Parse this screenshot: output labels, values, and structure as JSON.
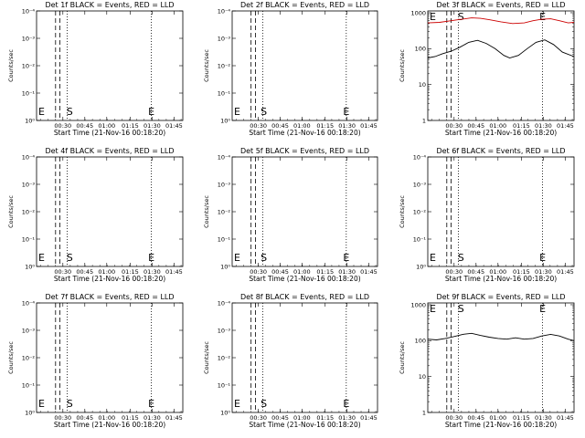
{
  "chart_data": [
    {
      "id": "det1f",
      "type": "line",
      "title": "Det 1f BLACK = Events, RED = LLD",
      "ylabel": "Counts/sec",
      "xlabel": "Start Time (21-Nov-16 00:18:20)",
      "ylim_labels": [
        "10⁰",
        "10⁻¹",
        "10⁻²",
        "10⁻³",
        "10⁻⁴"
      ],
      "xticks": [
        "00:30",
        "00:45",
        "01:00",
        "01:15",
        "01:30",
        "01:45"
      ],
      "markers": [
        {
          "label": "E",
          "x": 0.0
        },
        {
          "label": "S",
          "x": 0.2
        },
        {
          "label": "E",
          "x": 0.78
        }
      ],
      "series": []
    },
    {
      "id": "det2f",
      "type": "line",
      "title": "Det 2f BLACK = Events, RED = LLD",
      "ylabel": "Counts/sec",
      "xlabel": "Start Time (21-Nov-16 00:18:20)",
      "ylim_labels": [
        "10⁰",
        "10⁻¹",
        "10⁻²",
        "10⁻³",
        "10⁻⁴"
      ],
      "xticks": [
        "00:30",
        "00:45",
        "01:00",
        "01:15",
        "01:30",
        "01:45"
      ],
      "markers": [
        {
          "label": "E",
          "x": 0.0
        },
        {
          "label": "S",
          "x": 0.19
        },
        {
          "label": "E",
          "x": 0.78
        }
      ],
      "series": []
    },
    {
      "id": "det3f",
      "type": "line",
      "title": "Det 3f BLACK = Events, RED = LLD",
      "ylabel": "Counts/sec",
      "xlabel": "Start Time (21-Nov-16 00:18:20)",
      "ylim_labels": [
        "1",
        "10",
        "100",
        "1000"
      ],
      "xticks": [
        "00:30",
        "00:45",
        "01:00",
        "01:15",
        "01:30",
        "01:45"
      ],
      "markers": [
        {
          "label": "E",
          "x": 0.0
        },
        {
          "label": "S",
          "x": 0.2
        },
        {
          "label": "E",
          "x": 0.78
        }
      ],
      "series": [
        {
          "color": "#cc0000",
          "x": [
            0,
            0.08,
            0.16,
            0.22,
            0.3,
            0.36,
            0.42,
            0.5,
            0.58,
            0.66,
            0.72,
            0.78,
            0.84,
            0.9,
            0.96,
            1.0
          ],
          "y": [
            520,
            540,
            600,
            650,
            720,
            700,
            640,
            560,
            500,
            520,
            600,
            660,
            680,
            600,
            520,
            540
          ]
        },
        {
          "color": "#000000",
          "x": [
            0,
            0.05,
            0.1,
            0.16,
            0.22,
            0.28,
            0.34,
            0.4,
            0.46,
            0.52,
            0.56,
            0.62,
            0.68,
            0.74,
            0.8,
            0.86,
            0.92,
            1.0
          ],
          "y": [
            55,
            60,
            72,
            85,
            110,
            150,
            170,
            140,
            100,
            65,
            55,
            65,
            100,
            150,
            175,
            130,
            80,
            60
          ]
        }
      ]
    },
    {
      "id": "det4f",
      "type": "line",
      "title": "Det 4f BLACK = Events, RED = LLD",
      "ylabel": "Counts/sec",
      "xlabel": "Start Time (21-Nov-16 00:18:20)",
      "ylim_labels": [
        "10⁰",
        "10⁻¹",
        "10⁻²",
        "10⁻³",
        "10⁻⁴"
      ],
      "xticks": [
        "00:30",
        "00:45",
        "01:00",
        "01:15",
        "01:30",
        "01:45"
      ],
      "markers": [
        {
          "label": "E",
          "x": 0.0
        },
        {
          "label": "S",
          "x": 0.2
        },
        {
          "label": "E",
          "x": 0.78
        }
      ],
      "series": []
    },
    {
      "id": "det5f",
      "type": "line",
      "title": "Det 5f BLACK = Events, RED = LLD",
      "ylabel": "Counts/sec",
      "xlabel": "Start Time (21-Nov-16 00:18:20)",
      "ylim_labels": [
        "10⁰",
        "10⁻¹",
        "10⁻²",
        "10⁻³",
        "10⁻⁴"
      ],
      "xticks": [
        "00:30",
        "00:45",
        "01:00",
        "01:15",
        "01:30",
        "01:45"
      ],
      "markers": [
        {
          "label": "E",
          "x": 0.0
        },
        {
          "label": "S",
          "x": 0.19
        },
        {
          "label": "E",
          "x": 0.78
        }
      ],
      "series": []
    },
    {
      "id": "det6f",
      "type": "line",
      "title": "Det 6f BLACK = Events, RED = LLD",
      "ylabel": "Counts/sec",
      "xlabel": "Start Time (21-Nov-16 00:18:20)",
      "ylim_labels": [
        "10⁰",
        "10⁻¹",
        "10⁻²",
        "10⁻³",
        "10⁻⁴"
      ],
      "xticks": [
        "00:30",
        "00:45",
        "01:00",
        "01:15",
        "01:30",
        "01:45"
      ],
      "markers": [
        {
          "label": "E",
          "x": 0.0
        },
        {
          "label": "S",
          "x": 0.2
        },
        {
          "label": "E",
          "x": 0.78
        }
      ],
      "series": []
    },
    {
      "id": "det7f",
      "type": "line",
      "title": "Det 7f BLACK = Events, RED = LLD",
      "ylabel": "Counts/sec",
      "xlabel": "Start Time (21-Nov-16 00:18:20)",
      "ylim_labels": [
        "10⁰",
        "10⁻¹",
        "10⁻²",
        "10⁻³",
        "10⁻⁴"
      ],
      "xticks": [
        "00:30",
        "00:45",
        "01:00",
        "01:15",
        "01:30",
        "01:45"
      ],
      "markers": [
        {
          "label": "E",
          "x": 0.0
        },
        {
          "label": "S",
          "x": 0.2
        },
        {
          "label": "E",
          "x": 0.78
        }
      ],
      "series": []
    },
    {
      "id": "det8f",
      "type": "line",
      "title": "Det 8f BLACK = Events, RED = LLD",
      "ylabel": "Counts/sec",
      "xlabel": "Start Time (21-Nov-16 00:18:20)",
      "ylim_labels": [
        "10⁰",
        "10⁻¹",
        "10⁻²",
        "10⁻³",
        "10⁻⁴"
      ],
      "xticks": [
        "00:30",
        "00:45",
        "01:00",
        "01:15",
        "01:30",
        "01:45"
      ],
      "markers": [
        {
          "label": "E",
          "x": 0.0
        },
        {
          "label": "S",
          "x": 0.19
        },
        {
          "label": "E",
          "x": 0.78
        }
      ],
      "series": []
    },
    {
      "id": "det9f",
      "type": "line",
      "title": "Det 9f BLACK = Events, RED = LLD",
      "ylabel": "Counts/sec",
      "xlabel": "Start Time (21-Nov-16 00:18:20)",
      "ylim_labels": [
        "1",
        "10",
        "100",
        "1000"
      ],
      "xticks": [
        "00:30",
        "00:45",
        "01:00",
        "01:15",
        "01:30",
        "01:45"
      ],
      "markers": [
        {
          "label": "E",
          "x": 0.0
        },
        {
          "label": "S",
          "x": 0.2
        },
        {
          "label": "E",
          "x": 0.78
        }
      ],
      "series": [
        {
          "color": "#000000",
          "x": [
            0,
            0.06,
            0.12,
            0.18,
            0.24,
            0.3,
            0.36,
            0.42,
            0.48,
            0.54,
            0.6,
            0.66,
            0.72,
            0.78,
            0.84,
            0.9,
            0.96,
            1.0
          ],
          "y": [
            110,
            105,
            115,
            130,
            150,
            160,
            140,
            125,
            115,
            110,
            120,
            110,
            115,
            135,
            150,
            135,
            110,
            100
          ]
        }
      ]
    }
  ]
}
